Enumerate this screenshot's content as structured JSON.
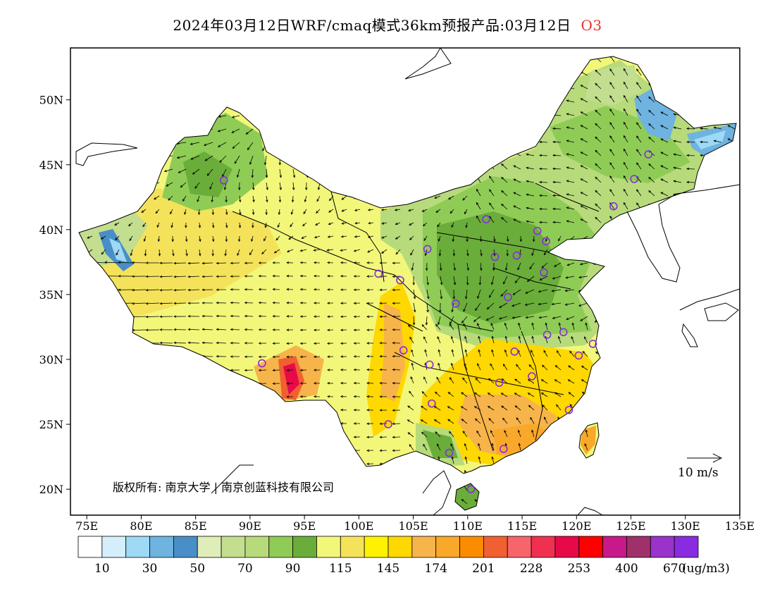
{
  "title": {
    "main": "2024年03月12日WRF/cmaq模式36km预报产品:03月12日",
    "species": "O3"
  },
  "map": {
    "lat_labels": [
      "50N",
      "45N",
      "40N",
      "35N",
      "30N",
      "25N",
      "20N"
    ],
    "lon_labels": [
      "75E",
      "80E",
      "85E",
      "90E",
      "95E",
      "100E",
      "105E",
      "110E",
      "115E",
      "120E",
      "125E",
      "130E",
      "135E"
    ],
    "wind_reference": "10 m/s",
    "copyright": "版权所有: 南京大学 | 南京创蓝科技有限公司"
  },
  "legend": {
    "unit": "(ug/m3)",
    "colors": [
      "#ffffff",
      "#d4effb",
      "#9ed9f5",
      "#6fb3e0",
      "#4a8ec8",
      "#dfeeb8",
      "#c2de8e",
      "#b7db7a",
      "#8fcc56",
      "#6aad3a",
      "#f2f77a",
      "#f4e35a",
      "#fef200",
      "#fed800",
      "#f7b44a",
      "#f9a82a",
      "#fb8c00",
      "#f06030",
      "#f7646a",
      "#f03050",
      "#e80a48",
      "#fe0000",
      "#c8188a",
      "#a0306a",
      "#9933cc",
      "#8a2be2"
    ],
    "tick_labels": [
      "10",
      "30",
      "50",
      "70",
      "90",
      "115",
      "145",
      "174",
      "201",
      "228",
      "253",
      "400",
      "670"
    ]
  },
  "cities": [
    {
      "lon": 87.6,
      "lat": 43.8
    },
    {
      "lon": 91.1,
      "lat": 29.7
    },
    {
      "lon": 101.8,
      "lat": 36.6
    },
    {
      "lon": 103.8,
      "lat": 36.1
    },
    {
      "lon": 106.3,
      "lat": 38.5
    },
    {
      "lon": 111.7,
      "lat": 40.8
    },
    {
      "lon": 116.4,
      "lat": 39.9
    },
    {
      "lon": 117.2,
      "lat": 39.1
    },
    {
      "lon": 114.5,
      "lat": 38.0
    },
    {
      "lon": 112.5,
      "lat": 37.9
    },
    {
      "lon": 117.0,
      "lat": 36.7
    },
    {
      "lon": 113.7,
      "lat": 34.8
    },
    {
      "lon": 108.9,
      "lat": 34.3
    },
    {
      "lon": 104.1,
      "lat": 30.7
    },
    {
      "lon": 106.5,
      "lat": 29.6
    },
    {
      "lon": 106.7,
      "lat": 26.6
    },
    {
      "lon": 102.7,
      "lat": 25.0
    },
    {
      "lon": 108.3,
      "lat": 22.8
    },
    {
      "lon": 113.3,
      "lat": 23.1
    },
    {
      "lon": 110.3,
      "lat": 20.0
    },
    {
      "lon": 112.9,
      "lat": 28.2
    },
    {
      "lon": 114.3,
      "lat": 30.6
    },
    {
      "lon": 115.9,
      "lat": 28.7
    },
    {
      "lon": 117.3,
      "lat": 31.9
    },
    {
      "lon": 118.8,
      "lat": 32.1
    },
    {
      "lon": 120.2,
      "lat": 30.3
    },
    {
      "lon": 121.5,
      "lat": 31.2
    },
    {
      "lon": 119.3,
      "lat": 26.1
    },
    {
      "lon": 123.4,
      "lat": 41.8
    },
    {
      "lon": 125.3,
      "lat": 43.9
    },
    {
      "lon": 126.6,
      "lat": 45.8
    }
  ]
}
